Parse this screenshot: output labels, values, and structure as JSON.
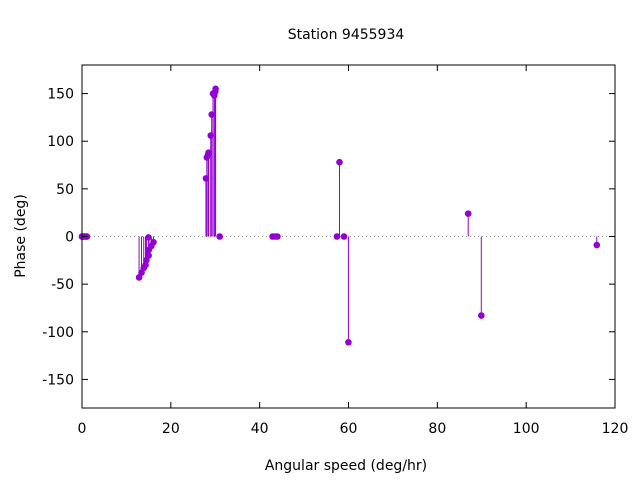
{
  "chart_data": {
    "type": "scatter",
    "style": "impulses",
    "title": "Station 9455934",
    "xlabel": "Angular speed (deg/hr)",
    "ylabel": "Phase (deg)",
    "xlim": [
      0,
      120
    ],
    "ylim": [
      -180,
      180
    ],
    "xticks": [
      0,
      20,
      40,
      60,
      80,
      100,
      120
    ],
    "yticks": [
      -150,
      -100,
      -50,
      0,
      50,
      100,
      150
    ],
    "grid": false,
    "zero_line": "dotted",
    "color": "#9400d3",
    "series": [
      {
        "x": [
          0.0,
          0.04,
          0.08,
          0.5,
          0.55,
          1.0,
          1.1,
          12.85,
          13.4,
          13.9,
          14.3,
          14.5,
          14.96,
          15.0,
          15.04,
          15.6,
          16.1,
          27.9,
          28.1,
          28.4,
          28.5,
          28.98,
          29.2,
          29.5,
          29.8,
          30.0,
          30.08,
          31.0,
          42.9,
          43.5,
          44.0,
          57.4,
          57.97,
          58.98,
          59.98,
          86.95,
          89.9,
          115.9
        ],
        "y": [
          0,
          0,
          0,
          0,
          0,
          0,
          0,
          -43,
          -38,
          -33,
          -30,
          -25,
          -1,
          -20,
          -14,
          -10,
          -6,
          61,
          83,
          86,
          88,
          106,
          128,
          150,
          148,
          152,
          155,
          0,
          0,
          0,
          0,
          0,
          78,
          0,
          -111,
          24,
          -83,
          -9
        ]
      }
    ]
  }
}
